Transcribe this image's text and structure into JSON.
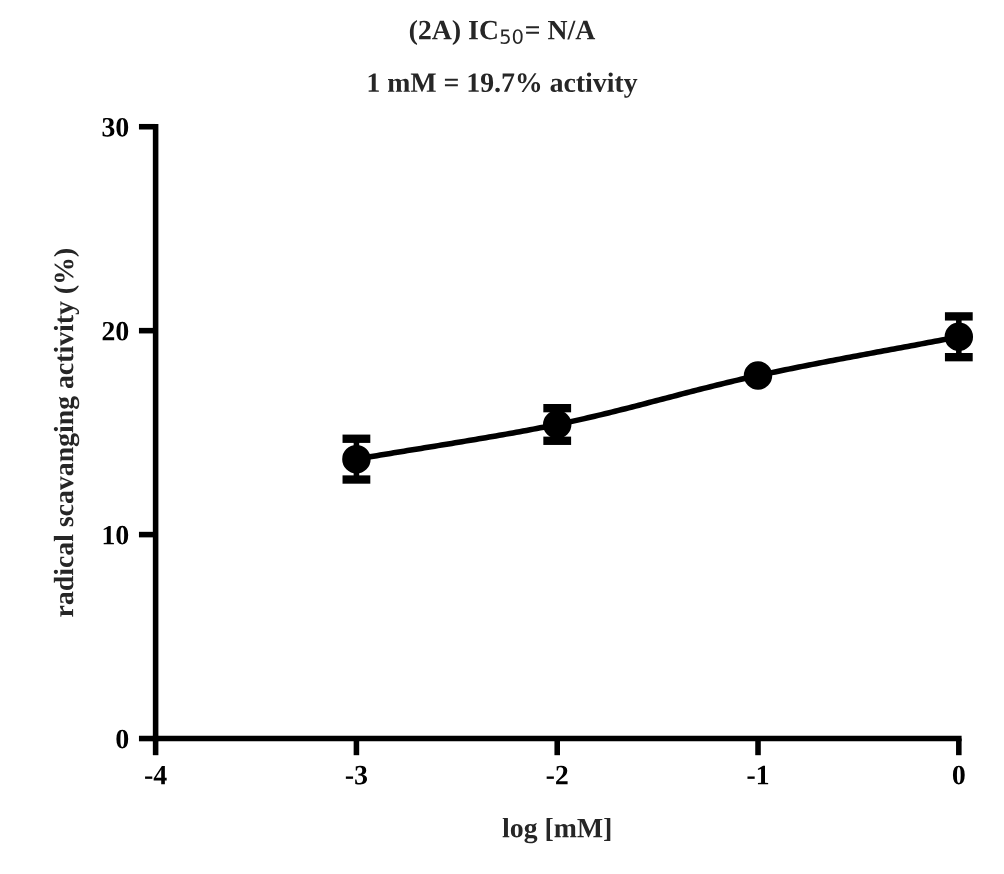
{
  "chart_data": {
    "type": "line",
    "title": "(2A) IC$_{50}$= N/A",
    "subtitle": "1 mM = 19.7% activity",
    "xlabel": "log [mM]",
    "ylabel": "radical scavanging activity (%)",
    "x": [
      -3,
      -2,
      -1,
      0
    ],
    "series": [
      {
        "color": "#000000",
        "values": [
          13.7,
          15.4,
          17.8,
          19.7
        ],
        "errors": [
          1.0,
          0.8,
          null,
          1.0
        ]
      }
    ],
    "marker": "circle",
    "line_style": "solid",
    "grid": false,
    "xlim": [
      -4,
      0
    ],
    "xticks": [
      -4,
      -3,
      -2,
      -1,
      0
    ],
    "ylim": [
      0,
      30
    ],
    "yticks": [
      0,
      10,
      20,
      30
    ]
  }
}
